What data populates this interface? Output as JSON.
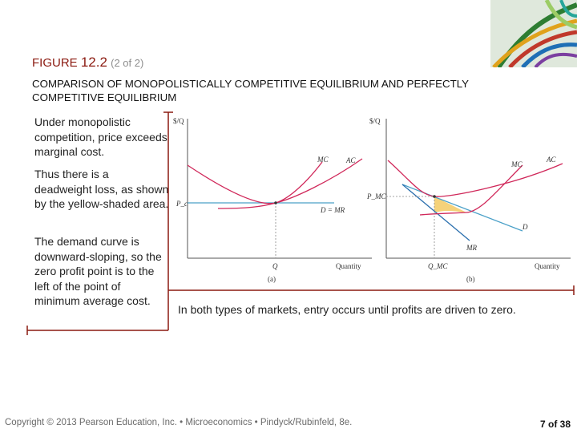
{
  "figure": {
    "label": "FIGURE",
    "number": "12.2",
    "part": "(2 of 2)",
    "subtitle": "COMPARISON OF MONOPOLISTICALLY COMPETITIVE EQUILIBRIUM AND PERFECTLY COMPETITIVE EQUILIBRIUM"
  },
  "side_text": [
    "Under monopolistic competition, price exceeds marginal cost.",
    "Thus there is a deadweight loss, as shown by the yellow-shaded area.",
    "The demand curve is downward-sloping, so the zero profit point is to the left of the point of minimum average cost."
  ],
  "panel_a": {
    "y_axis": "$/Q",
    "x_axis": "Quantity",
    "price_label": "P_c",
    "qty_label": "Q",
    "mc_label": "MC",
    "ac_label": "AC",
    "demand_label": "D = MR",
    "panel_label": "(a)"
  },
  "panel_b": {
    "y_axis": "$/Q",
    "x_axis": "Quantity",
    "price_label": "P_MC",
    "qty_label": "Q_MC",
    "mc_label": "MC",
    "ac_label": "AC",
    "demand_label": "D",
    "mr_label": "MR",
    "panel_label": "(b)"
  },
  "caption": "In both types of markets, entry occurs until profits are driven to zero.",
  "footer": "Copyright © 2013 Pearson Education, Inc. • Microeconomics • Pindyck/Rubinfeld, 8e.",
  "page": "7 of 38",
  "colors": {
    "title": "#8b1a10",
    "mc_ac_curves": "#d0285a",
    "demand_line": "#4aa0c8",
    "mr_line": "#2a6fae",
    "deadweight_fill": "#f5d27a",
    "bracket": "#8b1a10"
  }
}
